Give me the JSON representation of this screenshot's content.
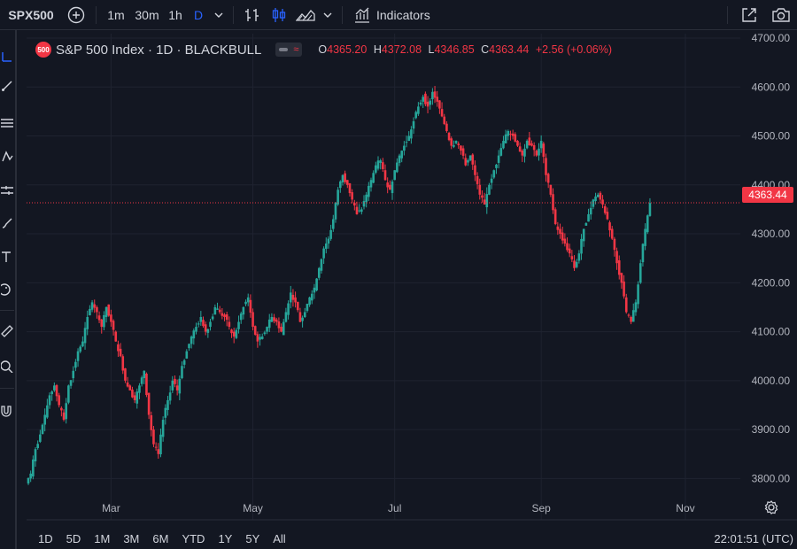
{
  "toolbar": {
    "symbol": "SPX500",
    "intervals": [
      "1m",
      "30m",
      "1h",
      "D"
    ],
    "active_interval": "D",
    "indicators_label": "Indicators"
  },
  "legend": {
    "badge": "500",
    "title": "S&P 500 Index · 1D · BLACKBULL",
    "open_label": "O",
    "open": "4365.20",
    "high_label": "H",
    "high": "4372.08",
    "low_label": "L",
    "low": "4346.85",
    "close_label": "C",
    "close": "4363.44",
    "change": "+2.56 (+0.06%)"
  },
  "last_price": "4363.44",
  "bottom": {
    "ranges": [
      "1D",
      "5D",
      "1M",
      "3M",
      "6M",
      "YTD",
      "1Y",
      "5Y",
      "All"
    ],
    "clock": "22:01:51 (UTC)"
  },
  "colors": {
    "up": "#26a69a",
    "down": "#f23645",
    "bg": "#131722",
    "grid": "#1f2330",
    "accent": "#2962ff"
  },
  "chart_data": {
    "type": "candlestick",
    "ylim": [
      3750,
      4700
    ],
    "y_ticks": [
      3800,
      3900,
      4000,
      4100,
      4200,
      4300,
      4400,
      4500,
      4600,
      4700
    ],
    "y_tick_labels": [
      "3800.00",
      "3900.00",
      "4000.00",
      "4100.00",
      "4200.00",
      "4300.00",
      "4400.00",
      "4500.00",
      "4600.00",
      "4700.00"
    ],
    "x_ticks": [
      {
        "label": "Mar",
        "day": 35
      },
      {
        "label": "May",
        "day": 95
      },
      {
        "label": "Jul",
        "day": 155
      },
      {
        "label": "Sep",
        "day": 217
      },
      {
        "label": "Nov",
        "day": 278
      }
    ],
    "x_range": [
      0,
      290
    ],
    "close_series": [
      [
        0,
        3810
      ],
      [
        2,
        3860
      ],
      [
        4,
        3890
      ],
      [
        6,
        3930
      ],
      [
        8,
        3970
      ],
      [
        10,
        3990
      ],
      [
        12,
        3950
      ],
      [
        14,
        3920
      ],
      [
        16,
        3990
      ],
      [
        18,
        4020
      ],
      [
        20,
        4060
      ],
      [
        22,
        4080
      ],
      [
        24,
        4130
      ],
      [
        26,
        4160
      ],
      [
        28,
        4140
      ],
      [
        30,
        4110
      ],
      [
        32,
        4150
      ],
      [
        34,
        4120
      ],
      [
        36,
        4080
      ],
      [
        38,
        4050
      ],
      [
        40,
        4000
      ],
      [
        42,
        3980
      ],
      [
        44,
        3960
      ],
      [
        46,
        3990
      ],
      [
        48,
        4020
      ],
      [
        50,
        3930
      ],
      [
        52,
        3870
      ],
      [
        54,
        3850
      ],
      [
        56,
        3920
      ],
      [
        58,
        3960
      ],
      [
        60,
        4000
      ],
      [
        62,
        3980
      ],
      [
        64,
        4030
      ],
      [
        66,
        4060
      ],
      [
        68,
        4090
      ],
      [
        70,
        4110
      ],
      [
        72,
        4130
      ],
      [
        74,
        4100
      ],
      [
        76,
        4120
      ],
      [
        78,
        4150
      ],
      [
        80,
        4140
      ],
      [
        82,
        4130
      ],
      [
        84,
        4110
      ],
      [
        86,
        4090
      ],
      [
        88,
        4120
      ],
      [
        90,
        4150
      ],
      [
        92,
        4170
      ],
      [
        94,
        4110
      ],
      [
        96,
        4080
      ],
      [
        98,
        4090
      ],
      [
        100,
        4110
      ],
      [
        102,
        4130
      ],
      [
        104,
        4120
      ],
      [
        106,
        4100
      ],
      [
        108,
        4140
      ],
      [
        110,
        4180
      ],
      [
        112,
        4160
      ],
      [
        114,
        4120
      ],
      [
        116,
        4140
      ],
      [
        118,
        4170
      ],
      [
        120,
        4190
      ],
      [
        122,
        4230
      ],
      [
        124,
        4270
      ],
      [
        126,
        4290
      ],
      [
        128,
        4330
      ],
      [
        130,
        4390
      ],
      [
        132,
        4420
      ],
      [
        134,
        4400
      ],
      [
        136,
        4370
      ],
      [
        138,
        4340
      ],
      [
        140,
        4350
      ],
      [
        142,
        4380
      ],
      [
        144,
        4410
      ],
      [
        146,
        4440
      ],
      [
        148,
        4450
      ],
      [
        150,
        4410
      ],
      [
        152,
        4390
      ],
      [
        154,
        4430
      ],
      [
        156,
        4460
      ],
      [
        158,
        4480
      ],
      [
        160,
        4500
      ],
      [
        162,
        4530
      ],
      [
        164,
        4560
      ],
      [
        166,
        4580
      ],
      [
        168,
        4560
      ],
      [
        170,
        4590
      ],
      [
        172,
        4570
      ],
      [
        174,
        4540
      ],
      [
        176,
        4510
      ],
      [
        178,
        4480
      ],
      [
        180,
        4490
      ],
      [
        182,
        4470
      ],
      [
        184,
        4440
      ],
      [
        186,
        4460
      ],
      [
        188,
        4420
      ],
      [
        190,
        4380
      ],
      [
        192,
        4360
      ],
      [
        194,
        4400
      ],
      [
        196,
        4430
      ],
      [
        198,
        4460
      ],
      [
        200,
        4490
      ],
      [
        202,
        4510
      ],
      [
        204,
        4500
      ],
      [
        206,
        4480
      ],
      [
        208,
        4460
      ],
      [
        210,
        4490
      ],
      [
        212,
        4480
      ],
      [
        214,
        4460
      ],
      [
        216,
        4490
      ],
      [
        218,
        4420
      ],
      [
        220,
        4380
      ],
      [
        222,
        4320
      ],
      [
        224,
        4300
      ],
      [
        226,
        4280
      ],
      [
        228,
        4260
      ],
      [
        230,
        4230
      ],
      [
        232,
        4260
      ],
      [
        234,
        4310
      ],
      [
        236,
        4340
      ],
      [
        238,
        4370
      ],
      [
        240,
        4380
      ],
      [
        242,
        4360
      ],
      [
        244,
        4330
      ],
      [
        246,
        4290
      ],
      [
        248,
        4240
      ],
      [
        250,
        4200
      ],
      [
        252,
        4140
      ],
      [
        254,
        4120
      ],
      [
        256,
        4160
      ],
      [
        258,
        4240
      ],
      [
        260,
        4310
      ],
      [
        262,
        4363
      ]
    ]
  }
}
